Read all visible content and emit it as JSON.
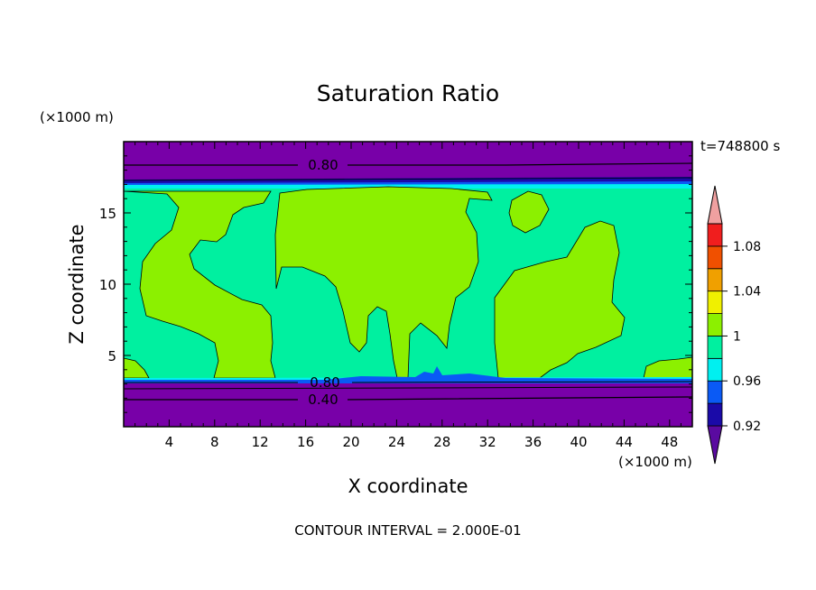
{
  "chart_data": {
    "type": "heatmap",
    "title": "Saturation Ratio",
    "xlabel": "X coordinate",
    "ylabel": "Z coordinate",
    "x_unit": "(×1000 m)",
    "y_unit": "(×1000 m)",
    "time_label": "t=748800 s",
    "footer": "CONTOUR INTERVAL = 2.000E-01",
    "xlim": [
      0,
      50
    ],
    "ylim": [
      0,
      20
    ],
    "x_ticks": [
      4,
      8,
      12,
      16,
      20,
      24,
      28,
      32,
      36,
      40,
      44,
      48
    ],
    "y_ticks": [
      5,
      10,
      15
    ],
    "contour_labels": [
      "0.80",
      "0.80",
      "0.40"
    ],
    "colorbar": {
      "labels": [
        "1.08",
        "1.04",
        "1",
        "0.96",
        "0.92"
      ],
      "colors": [
        "#5a0aa0",
        "#1a0aa8",
        "#0a5af5",
        "#00f0f0",
        "#00f0a0",
        "#8cf000",
        "#f0f000",
        "#f0a000",
        "#f05000",
        "#f01e1e",
        "#f0a0a0"
      ]
    },
    "colors": {
      "very_dry": "#7800a8",
      "deep_blue": "#1a0aa8",
      "blue": "#0a5af5",
      "cyan": "#00f0f0",
      "teal": "#00f0a0",
      "lime": "#8cf000",
      "yellow": "#f0f000"
    }
  }
}
